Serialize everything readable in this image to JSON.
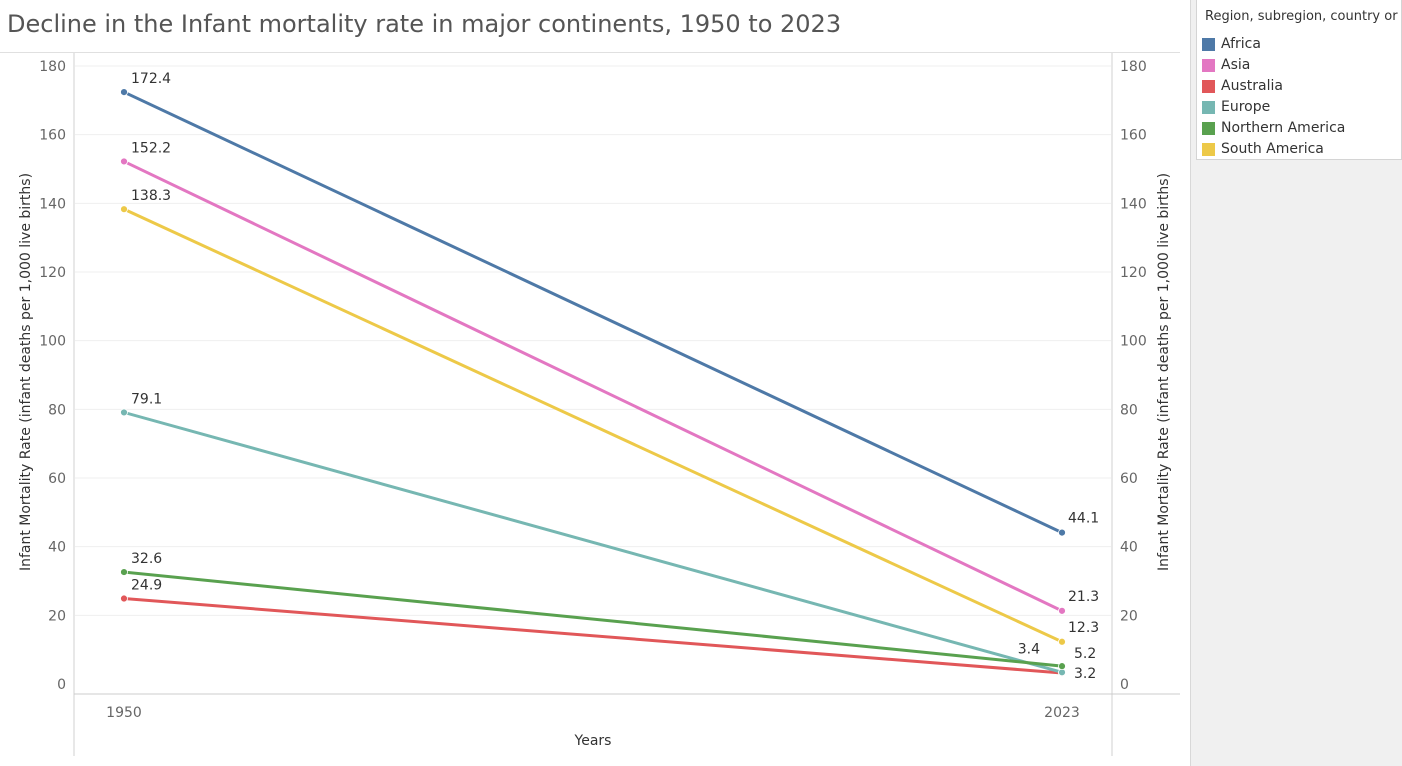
{
  "chart_data": {
    "type": "line",
    "title": "Decline in the Infant mortality rate in major continents, 1950 to 2023",
    "xlabel": "Years",
    "ylabel": "Infant Mortality Rate (infant deaths per 1,000 live births)",
    "x": [
      "1950",
      "2023"
    ],
    "ylim": [
      0,
      180
    ],
    "yticks": [
      0,
      20,
      40,
      60,
      80,
      100,
      120,
      140,
      160,
      180
    ],
    "grid": true,
    "legend_title": "Region, subregion, country or",
    "legend_position": "right",
    "series": [
      {
        "name": "Africa",
        "color": "#4e79a7",
        "values": [
          172.4,
          44.1
        ],
        "labels": [
          "172.4",
          "44.1"
        ]
      },
      {
        "name": "Asia",
        "color": "#e377c2",
        "values": [
          152.2,
          21.3
        ],
        "labels": [
          "152.2",
          "21.3"
        ]
      },
      {
        "name": "Australia",
        "color": "#e15759",
        "values": [
          24.9,
          3.2
        ],
        "labels": [
          "24.9",
          "3.2"
        ]
      },
      {
        "name": "Europe",
        "color": "#76b7b2",
        "values": [
          79.1,
          3.4
        ],
        "labels": [
          "79.1",
          "3.4"
        ]
      },
      {
        "name": "Northern America",
        "color": "#59a14f",
        "values": [
          32.6,
          5.2
        ],
        "labels": [
          "32.6",
          "5.2"
        ]
      },
      {
        "name": "South America",
        "color": "#edc948",
        "values": [
          138.3,
          12.3
        ],
        "labels": [
          "138.3",
          "12.3"
        ]
      }
    ]
  }
}
